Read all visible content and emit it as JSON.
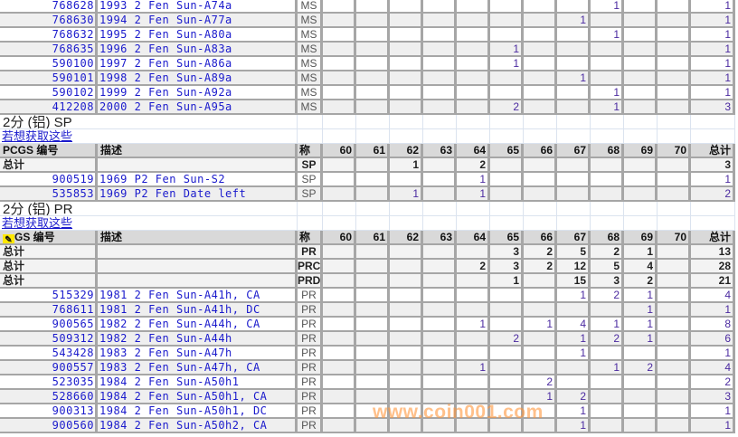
{
  "grades": [
    "60",
    "61",
    "62",
    "63",
    "64",
    "65",
    "66",
    "67",
    "68",
    "69",
    "70"
  ],
  "header": {
    "code": "PCGS 编号",
    "code_partial": "GS 编号",
    "desc": "描述",
    "grade": "称",
    "total": "总计"
  },
  "total_label": "总计",
  "link_label": "若想获取这些",
  "ms_rows": [
    {
      "code": "768628",
      "desc": "1993 2 Fen Sun-A74a",
      "grade": "MS",
      "counts": [
        "",
        "",
        "",
        "",
        "",
        "",
        "",
        "",
        "1",
        "",
        ""
      ],
      "total": "1"
    },
    {
      "code": "768630",
      "desc": "1994 2 Fen Sun-A77a",
      "grade": "MS",
      "counts": [
        "",
        "",
        "",
        "",
        "",
        "",
        "",
        "1",
        "",
        "",
        ""
      ],
      "total": "1"
    },
    {
      "code": "768632",
      "desc": "1995 2 Fen Sun-A80a",
      "grade": "MS",
      "counts": [
        "",
        "",
        "",
        "",
        "",
        "",
        "",
        "",
        "1",
        "",
        ""
      ],
      "total": "1"
    },
    {
      "code": "768635",
      "desc": "1996 2 Fen Sun-A83a",
      "grade": "MS",
      "counts": [
        "",
        "",
        "",
        "",
        "",
        "1",
        "",
        "",
        "",
        "",
        ""
      ],
      "total": "1"
    },
    {
      "code": "590100",
      "desc": "1997 2 Fen Sun-A86a",
      "grade": "MS",
      "counts": [
        "",
        "",
        "",
        "",
        "",
        "1",
        "",
        "",
        "",
        "",
        ""
      ],
      "total": "1"
    },
    {
      "code": "590101",
      "desc": "1998 2 Fen Sun-A89a",
      "grade": "MS",
      "counts": [
        "",
        "",
        "",
        "",
        "",
        "",
        "",
        "1",
        "",
        "",
        ""
      ],
      "total": "1"
    },
    {
      "code": "590102",
      "desc": "1999 2 Fen Sun-A92a",
      "grade": "MS",
      "counts": [
        "",
        "",
        "",
        "",
        "",
        "",
        "",
        "",
        "1",
        "",
        ""
      ],
      "total": "1"
    },
    {
      "code": "412208",
      "desc": "2000 2 Fen Sun-A95a",
      "grade": "MS",
      "counts": [
        "",
        "",
        "",
        "",
        "",
        "2",
        "",
        "",
        "1",
        "",
        ""
      ],
      "total": "3"
    }
  ],
  "sp": {
    "title": "2分 (铝) SP",
    "totals": [
      {
        "grade": "SP",
        "counts": [
          "",
          "",
          "1",
          "",
          "2",
          "",
          "",
          "",
          "",
          "",
          ""
        ],
        "total": "3"
      }
    ],
    "rows": [
      {
        "code": "900519",
        "desc": "1969 P2 Fen Sun-S2",
        "grade": "SP",
        "counts": [
          "",
          "",
          "",
          "",
          "1",
          "",
          "",
          "",
          "",
          "",
          ""
        ],
        "total": "1"
      },
      {
        "code": "535853",
        "desc": "1969 P2 Fen Date left",
        "grade": "SP",
        "counts": [
          "",
          "",
          "1",
          "",
          "1",
          "",
          "",
          "",
          "",
          "",
          ""
        ],
        "total": "2"
      }
    ]
  },
  "pr": {
    "title": "2分 (铝) PR",
    "totals": [
      {
        "grade": "PR",
        "counts": [
          "",
          "",
          "",
          "",
          "",
          "3",
          "2",
          "5",
          "2",
          "1",
          ""
        ],
        "total": "13"
      },
      {
        "grade": "PRC",
        "counts": [
          "",
          "",
          "",
          "",
          "2",
          "3",
          "2",
          "12",
          "5",
          "4",
          ""
        ],
        "total": "28"
      },
      {
        "grade": "PRD",
        "counts": [
          "",
          "",
          "",
          "",
          "",
          "1",
          "",
          "15",
          "3",
          "2",
          ""
        ],
        "total": "21"
      }
    ],
    "rows": [
      {
        "code": "515329",
        "desc": "1981 2 Fen Sun-A41h, CA",
        "grade": "PR",
        "counts": [
          "",
          "",
          "",
          "",
          "",
          "",
          "",
          "1",
          "2",
          "1",
          ""
        ],
        "total": "4"
      },
      {
        "code": "768611",
        "desc": "1981 2 Fen Sun-A41h, DC",
        "grade": "PR",
        "counts": [
          "",
          "",
          "",
          "",
          "",
          "",
          "",
          "",
          "",
          "1",
          ""
        ],
        "total": "1"
      },
      {
        "code": "900565",
        "desc": "1982 2 Fen Sun-A44h, CA",
        "grade": "PR",
        "counts": [
          "",
          "",
          "",
          "",
          "1",
          "",
          "1",
          "4",
          "1",
          "1",
          ""
        ],
        "total": "8"
      },
      {
        "code": "509312",
        "desc": "1982 2 Fen Sun-A44h",
        "grade": "PR",
        "counts": [
          "",
          "",
          "",
          "",
          "",
          "2",
          "",
          "1",
          "2",
          "1",
          ""
        ],
        "total": "6"
      },
      {
        "code": "543428",
        "desc": "1983 2 Fen Sun-A47h",
        "grade": "PR",
        "counts": [
          "",
          "",
          "",
          "",
          "",
          "",
          "",
          "1",
          "",
          "",
          ""
        ],
        "total": "1"
      },
      {
        "code": "900557",
        "desc": "1983 2 Fen Sun-A47h, CA",
        "grade": "PR",
        "counts": [
          "",
          "",
          "",
          "",
          "1",
          "",
          "",
          "",
          "1",
          "2",
          ""
        ],
        "total": "4"
      },
      {
        "code": "523035",
        "desc": "1984 2 Fen Sun-A50h1",
        "grade": "PR",
        "counts": [
          "",
          "",
          "",
          "",
          "",
          "",
          "2",
          "",
          "",
          "",
          ""
        ],
        "total": "2"
      },
      {
        "code": "528660",
        "desc": "1984 2 Fen Sun-A50h1, CA",
        "grade": "PR",
        "counts": [
          "",
          "",
          "",
          "",
          "",
          "",
          "1",
          "2",
          "",
          "",
          ""
        ],
        "total": "3"
      },
      {
        "code": "900313",
        "desc": "1984 2 Fen Sun-A50h1, DC",
        "grade": "PR",
        "counts": [
          "",
          "",
          "",
          "",
          "",
          "",
          "",
          "1",
          "",
          "",
          ""
        ],
        "total": "1"
      },
      {
        "code": "900560",
        "desc": "1984 2 Fen Sun-A50h2, CA",
        "grade": "PR",
        "counts": [
          "",
          "",
          "",
          "",
          "",
          "",
          "",
          "1",
          "",
          "",
          ""
        ],
        "total": "1"
      }
    ]
  },
  "watermark": "www.coin001.com",
  "colors": {
    "link": "#1a1acc",
    "header_bg": "#d9d9d9",
    "alt_row": "#efefef",
    "grid": "#a6a6a6",
    "watermark": "#ff9640"
  }
}
